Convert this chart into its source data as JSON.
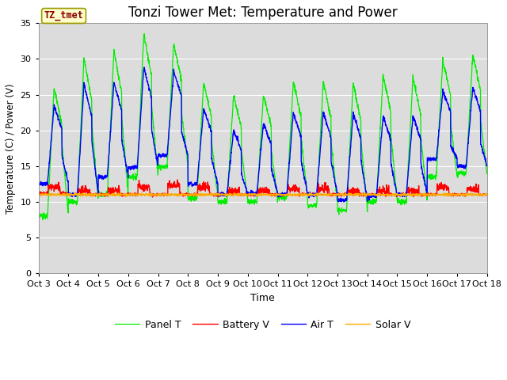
{
  "title": "Tonzi Tower Met: Temperature and Power",
  "xlabel": "Time",
  "ylabel": "Temperature (C) / Power (V)",
  "xlim": [
    0,
    15
  ],
  "ylim": [
    0,
    35
  ],
  "yticks": [
    0,
    5,
    10,
    15,
    20,
    25,
    30,
    35
  ],
  "x_tick_labels": [
    "Oct 3",
    "Oct 4",
    "Oct 5",
    "Oct 6",
    "Oct 7",
    "Oct 8",
    "Oct 9",
    "Oct 10",
    "Oct 11",
    "Oct 12",
    "Oct 13",
    "Oct 14",
    "Oct 15",
    "Oct 16",
    "Oct 17",
    "Oct 18"
  ],
  "x_tick_positions": [
    0,
    1,
    2,
    3,
    4,
    5,
    6,
    7,
    8,
    9,
    10,
    11,
    12,
    13,
    14,
    15
  ],
  "annotation_text": "TZ_tmet",
  "plot_bg_color": "#dcdcdc",
  "grid_color": "#ffffff",
  "line_colors": {
    "panel_t": "#00ee00",
    "battery_v": "#ff0000",
    "air_t": "#0000ff",
    "solar_v": "#ffaa00"
  },
  "legend_labels": [
    "Panel T",
    "Battery V",
    "Air T",
    "Solar V"
  ],
  "title_fontsize": 12,
  "figsize": [
    6.4,
    4.8
  ],
  "dpi": 100
}
